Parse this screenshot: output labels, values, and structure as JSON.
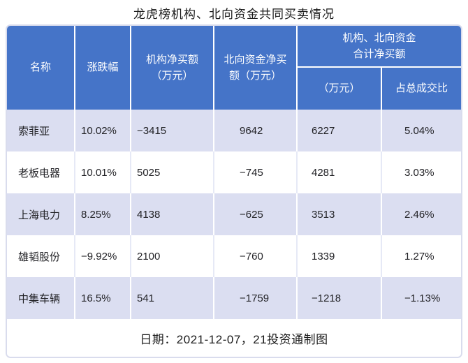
{
  "title": "龙虎榜机构、北向资金共同买卖情况",
  "colors": {
    "header_bg": "#4574C8",
    "row_alt_bg": "#DBDEF1",
    "row_bg": "#FFFFFF",
    "border": "#D9DCED",
    "header_text": "#FFFFFF",
    "body_text": "#222226"
  },
  "table": {
    "headers": {
      "name": "名称",
      "change": "涨跌幅",
      "inst_net_buy": "机构净买额\n（万元）",
      "north_net_buy": "北向资金净买\n额（万元）",
      "combined_group": "机构、北向资金\n合计净买额",
      "combined_amount": "（万元）",
      "combined_pct": "占总成交比"
    },
    "rows": [
      {
        "cells": [
          "索菲亚",
          "10.02%",
          "−3415",
          "9642",
          "6227",
          "5.04%"
        ]
      },
      {
        "cells": [
          "老板电器",
          "10.01%",
          "5025",
          "−745",
          "4281",
          "3.03%"
        ]
      },
      {
        "cells": [
          "上海电力",
          "8.25%",
          "4138",
          "−625",
          "3513",
          "2.46%"
        ]
      },
      {
        "cells": [
          "雄韬股份",
          "−9.92%",
          "2100",
          "−760",
          "1339",
          "1.27%"
        ]
      },
      {
        "cells": [
          "中集车辆",
          "16.5%",
          "541",
          "−1759",
          "−1218",
          "−1.13%"
        ]
      }
    ]
  },
  "footer": "日期：2021-12-07，21投资通制图",
  "chart_data": {
    "type": "table",
    "title": "龙虎榜机构、北向资金共同买卖情况",
    "columns": [
      "名称",
      "涨跌幅",
      "机构净买额（万元）",
      "北向资金净买额（万元）",
      "机构、北向资金合计净买额（万元）",
      "机构、北向资金合计净买额占总成交比"
    ],
    "rows": [
      [
        "索菲亚",
        "10.02%",
        -3415,
        9642,
        6227,
        "5.04%"
      ],
      [
        "老板电器",
        "10.01%",
        5025,
        -745,
        4281,
        "3.03%"
      ],
      [
        "上海电力",
        "8.25%",
        4138,
        -625,
        3513,
        "2.46%"
      ],
      [
        "雄韬股份",
        "-9.92%",
        2100,
        -760,
        1339,
        "1.27%"
      ],
      [
        "中集车辆",
        "16.5%",
        541,
        -1759,
        -1218,
        "-1.13%"
      ]
    ],
    "note": "日期：2021-12-07，21投资通制图"
  }
}
